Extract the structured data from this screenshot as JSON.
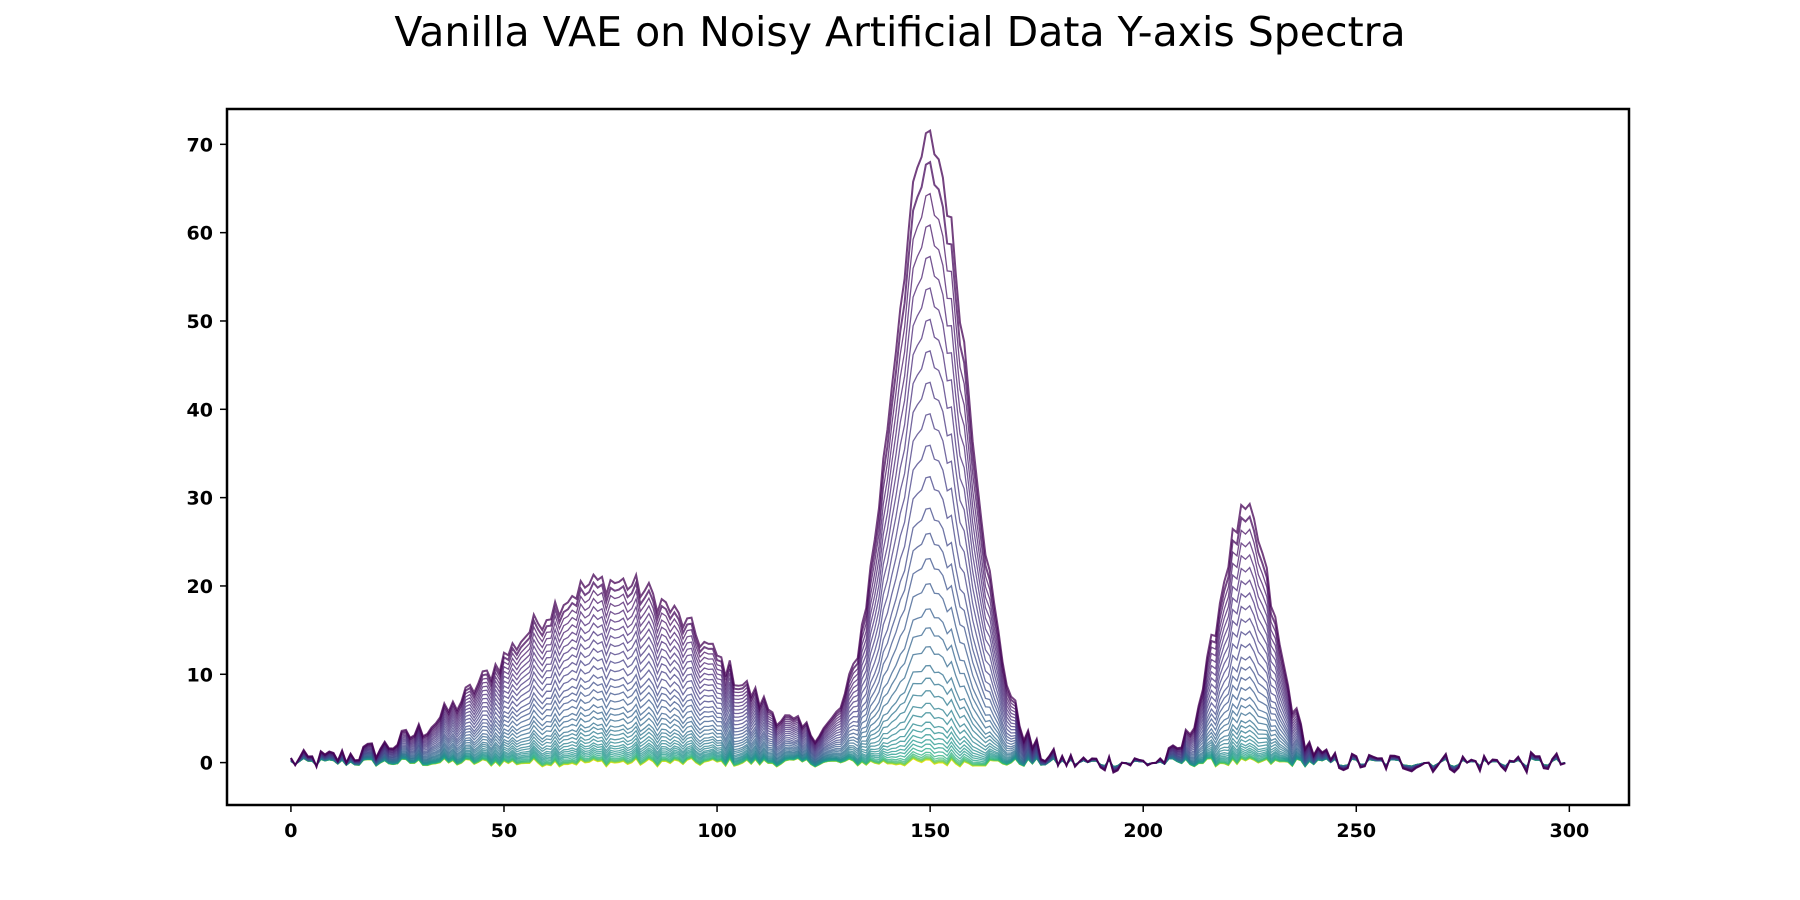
{
  "chart_data": {
    "type": "line",
    "title": "Vanilla VAE on Noisy Artificial Data Y-axis Spectra",
    "xlabel": "",
    "ylabel": "",
    "xlim": [
      -15,
      314
    ],
    "ylim": [
      -4.8,
      74
    ],
    "x_ticks": [
      0,
      50,
      100,
      150,
      200,
      250,
      300
    ],
    "y_ticks": [
      0,
      10,
      20,
      30,
      40,
      50,
      60,
      70
    ],
    "grid": false,
    "legend": "none",
    "x_points": 300,
    "colormap": "viridis",
    "colors": {
      "dark_purple": "#440154",
      "purple": "#482878",
      "indigo": "#3b528b",
      "blue": "#31688e",
      "teal": "#21918c",
      "sea_green": "#35b779",
      "yellow": "#fde725"
    },
    "components": [
      {
        "center": 75,
        "width": 24,
        "max_height": 20.5
      },
      {
        "center": 150,
        "width": 9,
        "max_height": 70
      },
      {
        "center": 224,
        "width": 6.5,
        "max_height": 28
      }
    ],
    "series": [
      {
        "color": "#440154",
        "scale": 1.0
      },
      {
        "color": "#46085c",
        "scale": 0.95
      },
      {
        "color": "#471063",
        "scale": 0.9
      },
      {
        "color": "#481769",
        "scale": 0.85
      },
      {
        "color": "#481d6f",
        "scale": 0.8
      },
      {
        "color": "#482374",
        "scale": 0.75
      },
      {
        "color": "#482878",
        "scale": 0.7
      },
      {
        "color": "#472e7c",
        "scale": 0.65
      },
      {
        "color": "#46337e",
        "scale": 0.6
      },
      {
        "color": "#453882",
        "scale": 0.55
      },
      {
        "color": "#433e85",
        "scale": 0.5
      },
      {
        "color": "#424086",
        "scale": 0.45
      },
      {
        "color": "#3f4788",
        "scale": 0.4
      },
      {
        "color": "#3d4d8a",
        "scale": 0.36
      },
      {
        "color": "#3b528b",
        "scale": 0.32
      },
      {
        "color": "#38588c",
        "scale": 0.28
      },
      {
        "color": "#355e8d",
        "scale": 0.24
      },
      {
        "color": "#33638d",
        "scale": 0.21
      },
      {
        "color": "#31688e",
        "scale": 0.18
      },
      {
        "color": "#2e6e8e",
        "scale": 0.15
      },
      {
        "color": "#2c738e",
        "scale": 0.13
      },
      {
        "color": "#2a788e",
        "scale": 0.11
      },
      {
        "color": "#287d8e",
        "scale": 0.09
      },
      {
        "color": "#26828e",
        "scale": 0.075
      },
      {
        "color": "#24878e",
        "scale": 0.06
      },
      {
        "color": "#228c8d",
        "scale": 0.05
      },
      {
        "color": "#21918c",
        "scale": 0.04
      },
      {
        "color": "#1f968b",
        "scale": 0.032
      },
      {
        "color": "#1f9a8a",
        "scale": 0.025
      },
      {
        "color": "#20a386",
        "scale": 0.018
      },
      {
        "color": "#29af7f",
        "scale": 0.012
      },
      {
        "color": "#35b779",
        "scale": 0.008
      },
      {
        "color": "#4ac16d",
        "scale": 0.005
      },
      {
        "color": "#6ccd5a",
        "scale": 0.003
      },
      {
        "color": "#8fd744",
        "scale": 0.002
      },
      {
        "color": "#b5de2b",
        "scale": 0.001
      },
      {
        "color": "#dde318",
        "scale": 0.0005
      },
      {
        "color": "#fde725",
        "scale": 0.0
      }
    ]
  }
}
